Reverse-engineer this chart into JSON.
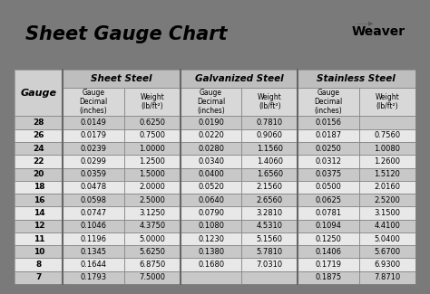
{
  "title": "Sheet Gauge Chart",
  "bg_outer": "#7a7a7a",
  "bg_title_bar": "#ffffff",
  "bg_table": "#ffffff",
  "header_top_bg": "#c8c8c8",
  "header_sub_bg": "#d8d8d8",
  "row_bg_even": "#c8c8c8",
  "row_bg_odd": "#e8e8e8",
  "gauges": [
    28,
    26,
    24,
    22,
    20,
    18,
    16,
    14,
    12,
    11,
    10,
    8,
    7
  ],
  "sheet_steel": [
    [
      "0.0149",
      "0.6250"
    ],
    [
      "0.0179",
      "0.7500"
    ],
    [
      "0.0239",
      "1.0000"
    ],
    [
      "0.0299",
      "1.2500"
    ],
    [
      "0.0359",
      "1.5000"
    ],
    [
      "0.0478",
      "2.0000"
    ],
    [
      "0.0598",
      "2.5000"
    ],
    [
      "0.0747",
      "3.1250"
    ],
    [
      "0.1046",
      "4.3750"
    ],
    [
      "0.1196",
      "5.0000"
    ],
    [
      "0.1345",
      "5.6250"
    ],
    [
      "0.1644",
      "6.8750"
    ],
    [
      "0.1793",
      "7.5000"
    ]
  ],
  "galvanized_steel": [
    [
      "0.0190",
      "0.7810"
    ],
    [
      "0.0220",
      "0.9060"
    ],
    [
      "0.0280",
      "1.1560"
    ],
    [
      "0.0340",
      "1.4060"
    ],
    [
      "0.0400",
      "1.6560"
    ],
    [
      "0.0520",
      "2.1560"
    ],
    [
      "0.0640",
      "2.6560"
    ],
    [
      "0.0790",
      "3.2810"
    ],
    [
      "0.1080",
      "4.5310"
    ],
    [
      "0.1230",
      "5.1560"
    ],
    [
      "0.1380",
      "5.7810"
    ],
    [
      "0.1680",
      "7.0310"
    ],
    [
      "",
      ""
    ]
  ],
  "stainless_steel": [
    [
      "0.0156",
      ""
    ],
    [
      "0.0187",
      "0.7560"
    ],
    [
      "0.0250",
      "1.0080"
    ],
    [
      "0.0312",
      "1.2600"
    ],
    [
      "0.0375",
      "1.5120"
    ],
    [
      "0.0500",
      "2.0160"
    ],
    [
      "0.0625",
      "2.5200"
    ],
    [
      "0.0781",
      "3.1500"
    ],
    [
      "0.1094",
      "4.4100"
    ],
    [
      "0.1250",
      "5.0400"
    ],
    [
      "0.1406",
      "5.6700"
    ],
    [
      "0.1719",
      "6.9300"
    ],
    [
      "0.1875",
      "7.8710"
    ]
  ]
}
